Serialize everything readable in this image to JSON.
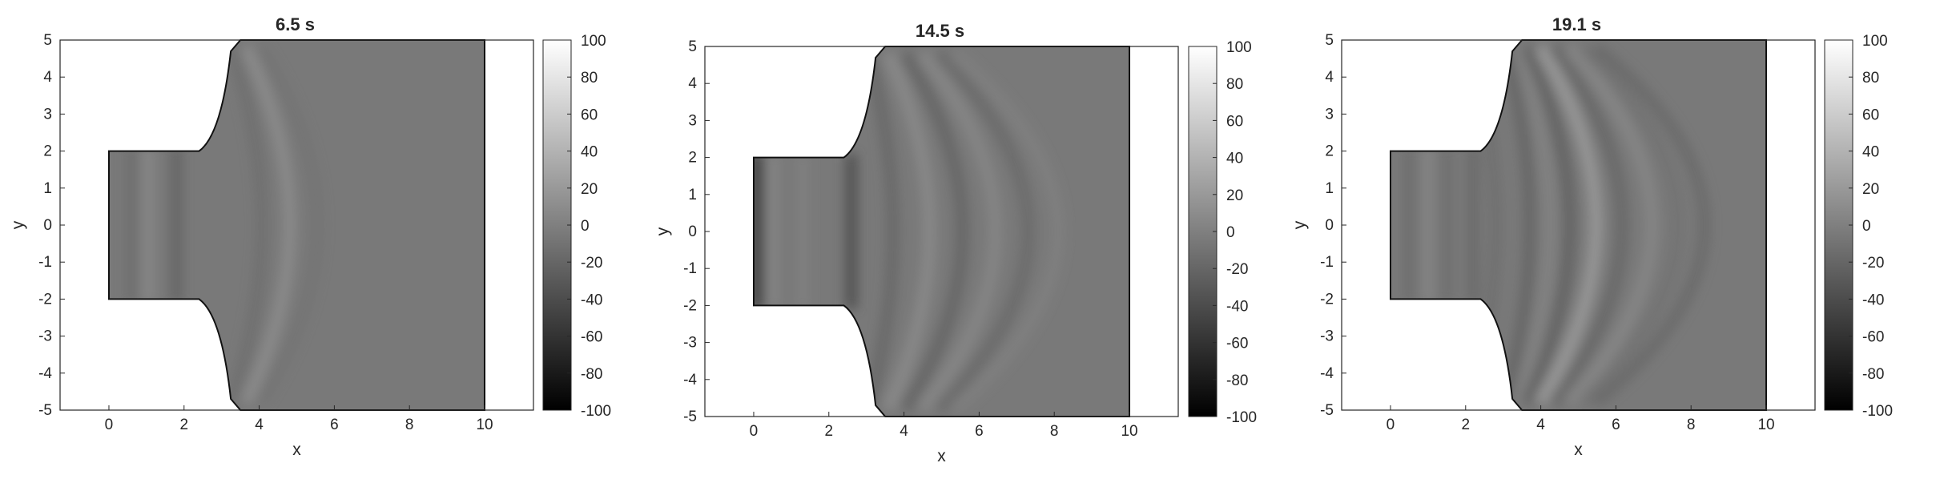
{
  "figure": {
    "panels": [
      {
        "title": "6.5 s"
      },
      {
        "title": "14.5 s"
      },
      {
        "title": "19.1 s"
      }
    ]
  },
  "chart_data": [
    {
      "type": "heatmap",
      "title": "6.5 s",
      "xlabel": "x",
      "ylabel": "y",
      "xlim": [
        -1.3,
        11.3
      ],
      "ylim": [
        -5,
        5
      ],
      "x_ticks": [
        "0",
        "2",
        "4",
        "6",
        "8",
        "10"
      ],
      "y_ticks": [
        "5",
        "4",
        "3",
        "2",
        "1",
        "0",
        "-1",
        "-2",
        "-3",
        "-4",
        "-5"
      ],
      "colorbar": {
        "min": -100,
        "max": 100,
        "ticks": [
          "100",
          "80",
          "60",
          "40",
          "20",
          "0",
          "-20",
          "-40",
          "-60",
          "-80",
          "-100"
        ],
        "colormap": "gray"
      },
      "domain_outline": [
        [
          0,
          2
        ],
        [
          2.4,
          2
        ],
        [
          3.5,
          5
        ],
        [
          10,
          5
        ],
        [
          10,
          -5
        ],
        [
          3.5,
          -5
        ],
        [
          2.4,
          -2
        ],
        [
          0,
          -2
        ]
      ],
      "wavefronts": [
        {
          "x_center": 0.6,
          "amplitude": -12,
          "shape": "straight"
        },
        {
          "x_center": 1.05,
          "amplitude": 14,
          "shape": "straight"
        },
        {
          "x_center": 1.8,
          "amplitude": -18,
          "shape": "straight"
        },
        {
          "x_center": 4.3,
          "amplitude": -10,
          "shape": "arc"
        },
        {
          "x_center": 5.15,
          "amplitude": 18,
          "shape": "arc"
        },
        {
          "x_center": 6.0,
          "amplitude": -6,
          "shape": "arc"
        }
      ]
    },
    {
      "type": "heatmap",
      "title": "14.5 s",
      "xlabel": "x",
      "ylabel": "y",
      "xlim": [
        -1.3,
        11.3
      ],
      "ylim": [
        -5,
        5
      ],
      "x_ticks": [
        "0",
        "2",
        "4",
        "6",
        "8",
        "10"
      ],
      "y_ticks": [
        "5",
        "4",
        "3",
        "2",
        "1",
        "0",
        "-1",
        "-2",
        "-3",
        "-4",
        "-5"
      ],
      "colorbar": {
        "min": -100,
        "max": 100,
        "ticks": [
          "100",
          "80",
          "60",
          "40",
          "20",
          "0",
          "-20",
          "-40",
          "-60",
          "-80",
          "-100"
        ],
        "colormap": "gray"
      },
      "domain_outline": [
        [
          0,
          2
        ],
        [
          2.4,
          2
        ],
        [
          3.5,
          5
        ],
        [
          10,
          5
        ],
        [
          10,
          -5
        ],
        [
          3.5,
          -5
        ],
        [
          2.4,
          -2
        ],
        [
          0,
          -2
        ]
      ],
      "wavefronts": [
        {
          "x_center": 0.1,
          "amplitude": -45,
          "shape": "straight"
        },
        {
          "x_center": 0.5,
          "amplitude": 12,
          "shape": "straight"
        },
        {
          "x_center": 1.3,
          "amplitude": 8,
          "shape": "straight"
        },
        {
          "x_center": 2.6,
          "amplitude": -30,
          "shape": "straight"
        },
        {
          "x_center": 3.9,
          "amplitude": -16,
          "shape": "arc"
        },
        {
          "x_center": 5.0,
          "amplitude": 16,
          "shape": "arc"
        },
        {
          "x_center": 6.0,
          "amplitude": -18,
          "shape": "arc"
        },
        {
          "x_center": 7.0,
          "amplitude": 14,
          "shape": "arc"
        },
        {
          "x_center": 8.0,
          "amplitude": -14,
          "shape": "arc"
        },
        {
          "x_center": 8.9,
          "amplitude": 8,
          "shape": "arc"
        }
      ]
    },
    {
      "type": "heatmap",
      "title": "19.1 s",
      "xlabel": "x",
      "ylabel": "y",
      "xlim": [
        -1.3,
        11.3
      ],
      "ylim": [
        -5,
        5
      ],
      "x_ticks": [
        "0",
        "2",
        "4",
        "6",
        "8",
        "10"
      ],
      "y_ticks": [
        "5",
        "4",
        "3",
        "2",
        "1",
        "0",
        "-1",
        "-2",
        "-3",
        "-4",
        "-5"
      ],
      "colorbar": {
        "min": -100,
        "max": 100,
        "ticks": [
          "100",
          "80",
          "60",
          "40",
          "20",
          "0",
          "-20",
          "-40",
          "-60",
          "-80",
          "-100"
        ],
        "colormap": "gray"
      },
      "domain_outline": [
        [
          0,
          2
        ],
        [
          2.4,
          2
        ],
        [
          3.5,
          5
        ],
        [
          10,
          5
        ],
        [
          10,
          -5
        ],
        [
          3.5,
          -5
        ],
        [
          2.4,
          -2
        ],
        [
          0,
          -2
        ]
      ],
      "wavefronts": [
        {
          "x_center": 0.5,
          "amplitude": -12,
          "shape": "straight"
        },
        {
          "x_center": 1.0,
          "amplitude": 12,
          "shape": "straight"
        },
        {
          "x_center": 1.5,
          "amplitude": -10,
          "shape": "straight"
        },
        {
          "x_center": 2.2,
          "amplitude": -14,
          "shape": "straight"
        },
        {
          "x_center": 3.0,
          "amplitude": -10,
          "shape": "arc"
        },
        {
          "x_center": 3.9,
          "amplitude": -18,
          "shape": "arc"
        },
        {
          "x_center": 4.5,
          "amplitude": 10,
          "shape": "arc"
        },
        {
          "x_center": 5.1,
          "amplitude": -20,
          "shape": "arc"
        },
        {
          "x_center": 5.9,
          "amplitude": 26,
          "shape": "arc"
        },
        {
          "x_center": 6.7,
          "amplitude": -16,
          "shape": "arc"
        },
        {
          "x_center": 7.6,
          "amplitude": 14,
          "shape": "arc"
        },
        {
          "x_center": 8.4,
          "amplitude": -8,
          "shape": "arc"
        },
        {
          "x_center": 9.2,
          "amplitude": -14,
          "shape": "arc"
        }
      ]
    }
  ]
}
